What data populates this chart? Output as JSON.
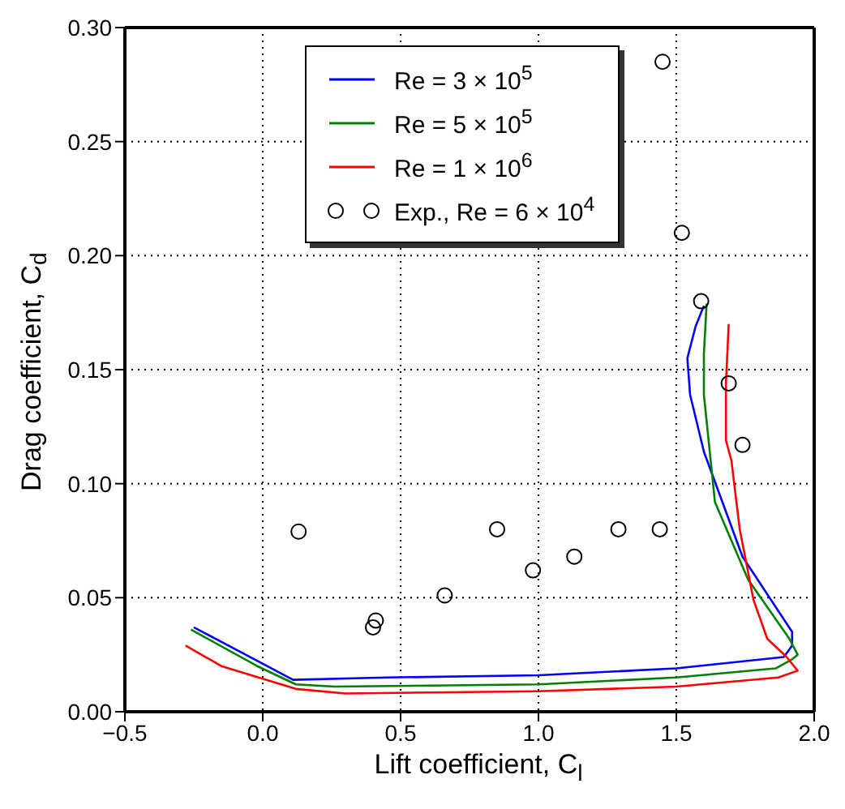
{
  "chart_data": {
    "type": "line",
    "xlabel": "Lift coefficient, C$_{l}$",
    "ylabel": "Drag coefficient, C$_{d}$",
    "xlim": [
      -0.5,
      2.0
    ],
    "xticks": [
      {
        "value": -0.5,
        "label": "−0.5"
      },
      {
        "value": 0,
        "label": "0.0"
      },
      {
        "value": 0.5,
        "label": "0.5"
      },
      {
        "value": 1.0,
        "label": "1.0"
      },
      {
        "value": 1.5,
        "label": "1.5"
      },
      {
        "value": 2.0,
        "label": "2.0"
      }
    ],
    "ylim": [
      0,
      0.3
    ],
    "yticks": [
      {
        "value": 0,
        "label": "0.00"
      },
      {
        "value": 0.05,
        "label": "0.05"
      },
      {
        "value": 0.1,
        "label": "0.10"
      },
      {
        "value": 0.15,
        "label": "0.15"
      },
      {
        "value": 0.2,
        "label": "0.20"
      },
      {
        "value": 0.25,
        "label": "0.25"
      },
      {
        "value": 0.3,
        "label": "0.30"
      }
    ],
    "grid": true,
    "legend": "top",
    "series": [
      {
        "name": "Re = 3 × 10$^{5}$",
        "marker": "none",
        "color": "#0000ff",
        "x": [
          -0.25,
          -0.03,
          0.11,
          0.45,
          1.0,
          1.5,
          1.89,
          1.92,
          1.92,
          1.74,
          1.6,
          1.55,
          1.54,
          1.57,
          1.6
        ],
        "values": [
          0.037,
          0.023,
          0.014,
          0.015,
          0.016,
          0.019,
          0.024,
          0.029,
          0.035,
          0.068,
          0.114,
          0.139,
          0.155,
          0.169,
          0.178
        ]
      },
      {
        "name": "Re = 5 × 10$^{5}$",
        "marker": "none",
        "color": "#008000",
        "x": [
          -0.26,
          -0.02,
          0.12,
          0.26,
          1.0,
          1.5,
          1.86,
          1.92,
          1.94,
          1.91,
          1.76,
          1.64,
          1.6,
          1.6,
          1.61
        ],
        "values": [
          0.036,
          0.02,
          0.012,
          0.011,
          0.012,
          0.015,
          0.019,
          0.023,
          0.025,
          0.032,
          0.058,
          0.092,
          0.139,
          0.157,
          0.179
        ]
      },
      {
        "name": "Re = 1 × 10$^{6}$",
        "marker": "none",
        "color": "#ff0000",
        "x": [
          -0.28,
          -0.15,
          0.12,
          0.3,
          1.0,
          1.5,
          1.87,
          1.94,
          1.9,
          1.83,
          1.78,
          1.73,
          1.7,
          1.68,
          1.68,
          1.69
        ],
        "values": [
          0.029,
          0.02,
          0.01,
          0.008,
          0.009,
          0.011,
          0.015,
          0.018,
          0.024,
          0.032,
          0.049,
          0.08,
          0.11,
          0.119,
          0.144,
          0.17
        ]
      },
      {
        "name": "Exp., Re = 6 × 10$^{4}$",
        "type": "scatter",
        "marker": "circle",
        "color": "#000000",
        "x": [
          0.13,
          0.4,
          0.41,
          0.66,
          0.85,
          0.98,
          1.13,
          1.29,
          1.44,
          1.45,
          1.52,
          1.59,
          1.69,
          1.74
        ],
        "values": [
          0.079,
          0.037,
          0.04,
          0.051,
          0.08,
          0.062,
          0.068,
          0.08,
          0.08,
          0.285,
          0.21,
          0.18,
          0.144,
          0.117
        ]
      }
    ]
  }
}
